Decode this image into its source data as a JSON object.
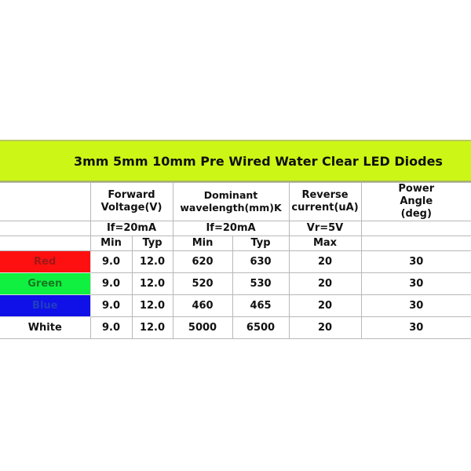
{
  "title": "3mm 5mm 10mm Pre Wired Water Clear LED Diodes",
  "headers": {
    "forward_voltage": "Forward Voltage(V)",
    "dominant_wavelength": "Dominant wavelength(mm)K",
    "reverse_current": "Reverse current(uA)",
    "power_angle": "Power Angle (deg)"
  },
  "conditions": {
    "forward_voltage": "If=20mA",
    "dominant_wavelength": "If=20mA",
    "reverse_current": "Vr=5V"
  },
  "subheaders": {
    "fv_min": "Min",
    "fv_typ": "Typ",
    "dw_min": "Min",
    "dw_typ": "Typ",
    "rc_max": "Max"
  },
  "rows": [
    {
      "color": "Red",
      "swatch": "#fe1010",
      "fv_min": "9.0",
      "fv_typ": "12.0",
      "dw_min": "620",
      "dw_typ": "630",
      "rc_max": "20",
      "angle": "30"
    },
    {
      "color": "Green",
      "swatch": "#10f040",
      "fv_min": "9.0",
      "fv_typ": "12.0",
      "dw_min": "520",
      "dw_typ": "530",
      "rc_max": "20",
      "angle": "30"
    },
    {
      "color": "Blue",
      "swatch": "#1010e8",
      "fv_min": "9.0",
      "fv_typ": "12.0",
      "dw_min": "460",
      "dw_typ": "465",
      "rc_max": "20",
      "angle": "30"
    },
    {
      "color": "White",
      "swatch": "#ffffff",
      "fv_min": "9.0",
      "fv_typ": "12.0",
      "dw_min": "5000",
      "dw_typ": "6500",
      "rc_max": "20",
      "angle": "30"
    }
  ],
  "accent_color": "#ccf716"
}
